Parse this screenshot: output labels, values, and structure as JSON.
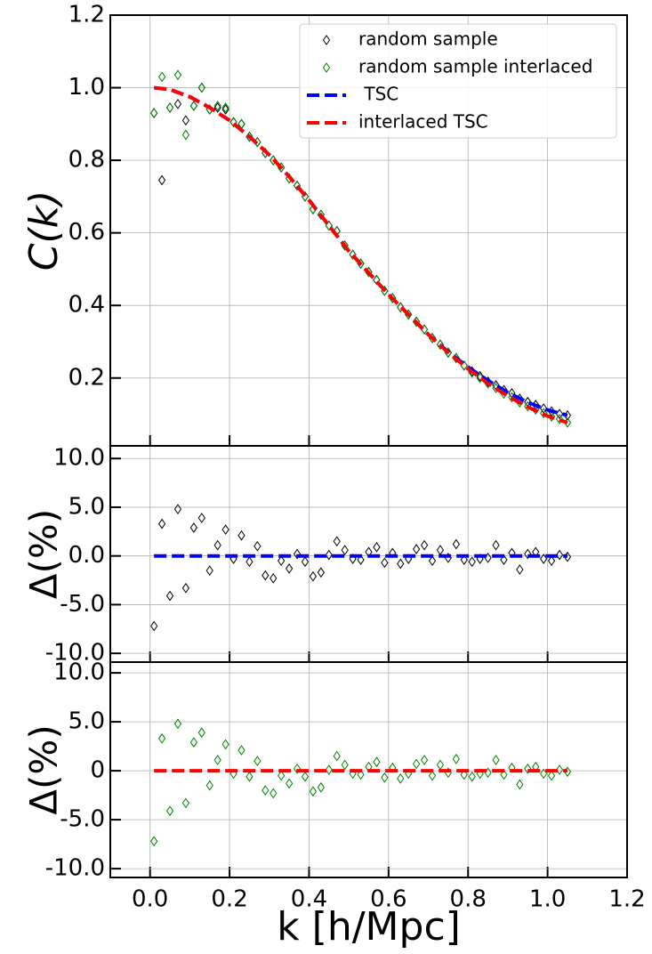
{
  "chart_data": [
    {
      "type": "line",
      "ylabel": "C(k)",
      "ylim": [
        0.013,
        1.2
      ],
      "yticks": [
        0.2,
        0.4,
        0.6,
        0.8,
        {
          "value": 1.0,
          "label": "1.0"
        },
        1.2
      ],
      "grid": true,
      "legend": "upper right",
      "series": [
        {
          "name": "random sample",
          "color": "#000000",
          "marker": "diamond",
          "x": [
            0.01,
            0.03,
            0.05,
            0.07,
            0.09,
            0.11,
            0.13,
            0.15,
            0.17,
            0.19,
            0.21,
            0.23,
            0.25,
            0.27,
            0.29,
            0.31,
            0.33,
            0.35,
            0.37,
            0.39,
            0.41,
            0.43,
            0.45,
            0.47,
            0.49,
            0.51,
            0.53,
            0.55,
            0.57,
            0.59,
            0.61,
            0.63,
            0.65,
            0.67,
            0.69,
            0.71,
            0.73,
            0.75,
            0.77,
            0.79,
            0.81,
            0.83,
            0.85,
            0.87,
            0.89,
            0.91,
            0.93,
            0.95,
            0.97,
            0.99,
            1.01,
            1.03,
            1.05
          ],
          "values": [
            0.93,
            0.745,
            0.945,
            0.955,
            0.91,
            0.95,
            1.0,
            0.94,
            0.945,
            0.94,
            0.905,
            0.9,
            0.865,
            0.85,
            0.82,
            0.8,
            0.78,
            0.75,
            0.73,
            0.7,
            0.665,
            0.65,
            0.62,
            0.605,
            0.565,
            0.54,
            0.515,
            0.492,
            0.47,
            0.44,
            0.42,
            0.395,
            0.375,
            0.355,
            0.334,
            0.31,
            0.292,
            0.27,
            0.255,
            0.234,
            0.218,
            0.205,
            0.19,
            0.18,
            0.167,
            0.158,
            0.143,
            0.134,
            0.126,
            0.116,
            0.108,
            0.101,
            0.097
          ]
        },
        {
          "name": "random sample interlaced",
          "color": "#008000",
          "marker": "diamond",
          "x": [
            0.01,
            0.03,
            0.05,
            0.07,
            0.09,
            0.11,
            0.13,
            0.15,
            0.17,
            0.19,
            0.21,
            0.23,
            0.25,
            0.27,
            0.29,
            0.31,
            0.33,
            0.35,
            0.37,
            0.39,
            0.41,
            0.43,
            0.45,
            0.47,
            0.49,
            0.51,
            0.53,
            0.55,
            0.57,
            0.59,
            0.61,
            0.63,
            0.65,
            0.67,
            0.69,
            0.71,
            0.73,
            0.75,
            0.77,
            0.79,
            0.81,
            0.83,
            0.85,
            0.87,
            0.89,
            0.91,
            0.93,
            0.95,
            0.97,
            0.99,
            1.01,
            1.03,
            1.05
          ],
          "values": [
            0.93,
            1.03,
            0.945,
            1.035,
            0.87,
            0.95,
            1.0,
            0.94,
            0.95,
            0.945,
            0.905,
            0.9,
            0.865,
            0.85,
            0.82,
            0.8,
            0.78,
            0.75,
            0.73,
            0.7,
            0.665,
            0.65,
            0.62,
            0.605,
            0.565,
            0.54,
            0.515,
            0.492,
            0.47,
            0.44,
            0.42,
            0.395,
            0.375,
            0.355,
            0.334,
            0.31,
            0.292,
            0.27,
            0.255,
            0.234,
            0.215,
            0.2,
            0.185,
            0.172,
            0.157,
            0.147,
            0.133,
            0.122,
            0.113,
            0.103,
            0.094,
            0.087,
            0.077
          ]
        },
        {
          "name": " TSC",
          "color": "#0000ff",
          "linestyle": "dashed",
          "x": [
            0.01,
            0.05,
            0.1,
            0.15,
            0.2,
            0.25,
            0.3,
            0.35,
            0.4,
            0.45,
            0.5,
            0.55,
            0.6,
            0.65,
            0.7,
            0.75,
            0.8,
            0.85,
            0.9,
            0.95,
            1.0,
            1.05
          ],
          "values": [
            1.0,
            0.995,
            0.975,
            0.945,
            0.91,
            0.865,
            0.815,
            0.755,
            0.69,
            0.62,
            0.55,
            0.49,
            0.43,
            0.375,
            0.32,
            0.272,
            0.23,
            0.193,
            0.16,
            0.133,
            0.112,
            0.097
          ]
        },
        {
          "name": "interlaced TSC",
          "color": "#ff0000",
          "linestyle": "dashed",
          "x": [
            0.01,
            0.05,
            0.1,
            0.15,
            0.2,
            0.25,
            0.3,
            0.35,
            0.4,
            0.45,
            0.5,
            0.55,
            0.6,
            0.65,
            0.7,
            0.75,
            0.8,
            0.85,
            0.9,
            0.95,
            1.0,
            1.05
          ],
          "values": [
            1.0,
            0.995,
            0.975,
            0.945,
            0.91,
            0.865,
            0.815,
            0.755,
            0.69,
            0.62,
            0.55,
            0.49,
            0.43,
            0.375,
            0.32,
            0.27,
            0.225,
            0.185,
            0.15,
            0.12,
            0.095,
            0.077
          ]
        }
      ]
    },
    {
      "type": "line",
      "ylabel": "Δ(%)",
      "ylim": [
        -10.9,
        11.3
      ],
      "yticks": [
        {
          "value": -10,
          "label": "-10.0"
        },
        {
          "value": -5,
          "label": "-5.0"
        },
        {
          "value": 0,
          "label": "0.0"
        },
        {
          "value": 5,
          "label": "5.0"
        },
        {
          "value": 10,
          "label": "10.0"
        }
      ],
      "grid": true,
      "series": [
        {
          "color": "#000000",
          "marker": "diamond",
          "x": [
            0.01,
            0.03,
            0.05,
            0.07,
            0.09,
            0.11,
            0.13,
            0.15,
            0.17,
            0.19,
            0.21,
            0.23,
            0.25,
            0.27,
            0.29,
            0.31,
            0.33,
            0.35,
            0.37,
            0.39,
            0.41,
            0.43,
            0.45,
            0.47,
            0.49,
            0.51,
            0.53,
            0.55,
            0.57,
            0.59,
            0.61,
            0.63,
            0.65,
            0.67,
            0.69,
            0.71,
            0.73,
            0.75,
            0.77,
            0.79,
            0.81,
            0.83,
            0.85,
            0.87,
            0.89,
            0.91,
            0.93,
            0.95,
            0.97,
            0.99,
            1.01,
            1.03,
            1.05
          ],
          "values": [
            -7.2,
            3.3,
            -4.1,
            4.8,
            -3.3,
            2.9,
            3.9,
            -1.5,
            1.1,
            2.7,
            -0.3,
            2.1,
            -0.6,
            1.0,
            -2.0,
            -2.3,
            -0.5,
            -1.3,
            0.2,
            -0.6,
            -2.1,
            -1.7,
            0.1,
            1.5,
            0.6,
            -0.3,
            -0.4,
            0.4,
            0.9,
            -0.7,
            0.3,
            -0.8,
            -0.3,
            0.7,
            1.1,
            -0.5,
            0.6,
            -0.2,
            1.2,
            -0.4,
            -0.6,
            -0.3,
            -0.2,
            1.1,
            -0.4,
            0.3,
            -1.4,
            0.2,
            0.4,
            -0.3,
            -0.5,
            0.1,
            -0.1
          ]
        },
        {
          "color": "#0000ff",
          "linestyle": "dashed",
          "x": [
            0.01,
            1.05
          ],
          "values": [
            0,
            0
          ]
        }
      ]
    },
    {
      "type": "line",
      "ylabel": "Δ(%)",
      "xlabel": "k [h/Mpc]",
      "ylim": [
        -10.9,
        11.1
      ],
      "yticks": [
        {
          "value": -10,
          "label": "-10.0"
        },
        {
          "value": -5,
          "label": "-5.0"
        },
        0,
        {
          "value": 5,
          "label": "5.0"
        },
        {
          "value": 10,
          "label": "10.0"
        }
      ],
      "grid": true,
      "xlim": [
        -0.1,
        1.2
      ],
      "xticks": [
        {
          "value": 0,
          "label": "0.0"
        },
        0.2,
        0.4,
        0.6,
        0.8,
        {
          "value": 1.0,
          "label": "1.0"
        },
        1.2
      ],
      "series": [
        {
          "color": "#008000",
          "marker": "diamond",
          "x": [
            0.01,
            0.03,
            0.05,
            0.07,
            0.09,
            0.11,
            0.13,
            0.15,
            0.17,
            0.19,
            0.21,
            0.23,
            0.25,
            0.27,
            0.29,
            0.31,
            0.33,
            0.35,
            0.37,
            0.39,
            0.41,
            0.43,
            0.45,
            0.47,
            0.49,
            0.51,
            0.53,
            0.55,
            0.57,
            0.59,
            0.61,
            0.63,
            0.65,
            0.67,
            0.69,
            0.71,
            0.73,
            0.75,
            0.77,
            0.79,
            0.81,
            0.83,
            0.85,
            0.87,
            0.89,
            0.91,
            0.93,
            0.95,
            0.97,
            0.99,
            1.01,
            1.03,
            1.05
          ],
          "values": [
            -7.2,
            3.3,
            -4.1,
            4.8,
            -3.3,
            2.9,
            3.9,
            -1.5,
            1.1,
            2.7,
            -0.3,
            2.1,
            -0.6,
            1.0,
            -2.0,
            -2.3,
            -0.5,
            -1.3,
            0.2,
            -0.6,
            -2.1,
            -1.7,
            0.1,
            1.5,
            0.6,
            -0.3,
            -0.4,
            0.4,
            0.9,
            -0.7,
            0.3,
            -0.8,
            -0.3,
            0.7,
            1.1,
            -0.5,
            0.6,
            -0.2,
            1.2,
            -0.4,
            -0.6,
            -0.3,
            -0.2,
            1.1,
            -0.4,
            0.3,
            -1.4,
            0.2,
            0.4,
            -0.3,
            -0.5,
            0.1,
            -0.1
          ]
        },
        {
          "color": "#ff0000",
          "linestyle": "dashed",
          "x": [
            0.01,
            1.05
          ],
          "values": [
            0,
            0
          ]
        }
      ]
    }
  ]
}
